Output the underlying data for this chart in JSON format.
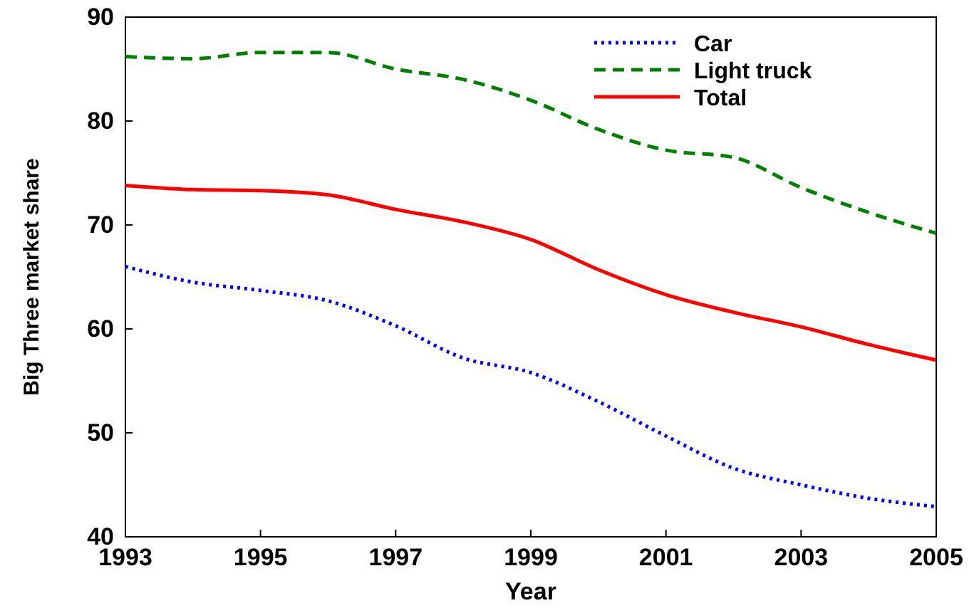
{
  "chart_data": {
    "type": "line",
    "xlabel": "Year",
    "ylabel": "Big Three market share",
    "x": [
      1993,
      1994,
      1995,
      1996,
      1997,
      1998,
      1999,
      2000,
      2001,
      2002,
      2003,
      2004,
      2005
    ],
    "series": [
      {
        "name": "Car",
        "color": "#0000ff",
        "line_style": "dotted",
        "values": [
          66,
          64.5,
          63.7,
          62.7,
          60.3,
          57.2,
          55.8,
          53,
          49.7,
          46.6,
          45,
          43.7,
          42.9
        ]
      },
      {
        "name": "Light truck",
        "color": "#008000",
        "line_style": "dashed",
        "values": [
          86.2,
          86,
          86.6,
          86.6,
          85,
          84,
          82,
          79.2,
          77.2,
          76.5,
          73.6,
          71.2,
          69.2
        ]
      },
      {
        "name": "Total",
        "color": "#ff0000",
        "line_style": "solid",
        "values": [
          73.8,
          73.4,
          73.3,
          72.9,
          71.5,
          70.3,
          68.6,
          65.7,
          63.3,
          61.6,
          60.2,
          58.5,
          57
        ]
      }
    ],
    "xlim": [
      1993,
      2005
    ],
    "xticks": [
      1993,
      1995,
      1997,
      1999,
      2001,
      2003,
      2005
    ],
    "ylim": [
      40,
      90
    ],
    "yticks": [
      40,
      50,
      60,
      70,
      80,
      90
    ],
    "grid": false,
    "legend": "top right",
    "marker": "none"
  }
}
